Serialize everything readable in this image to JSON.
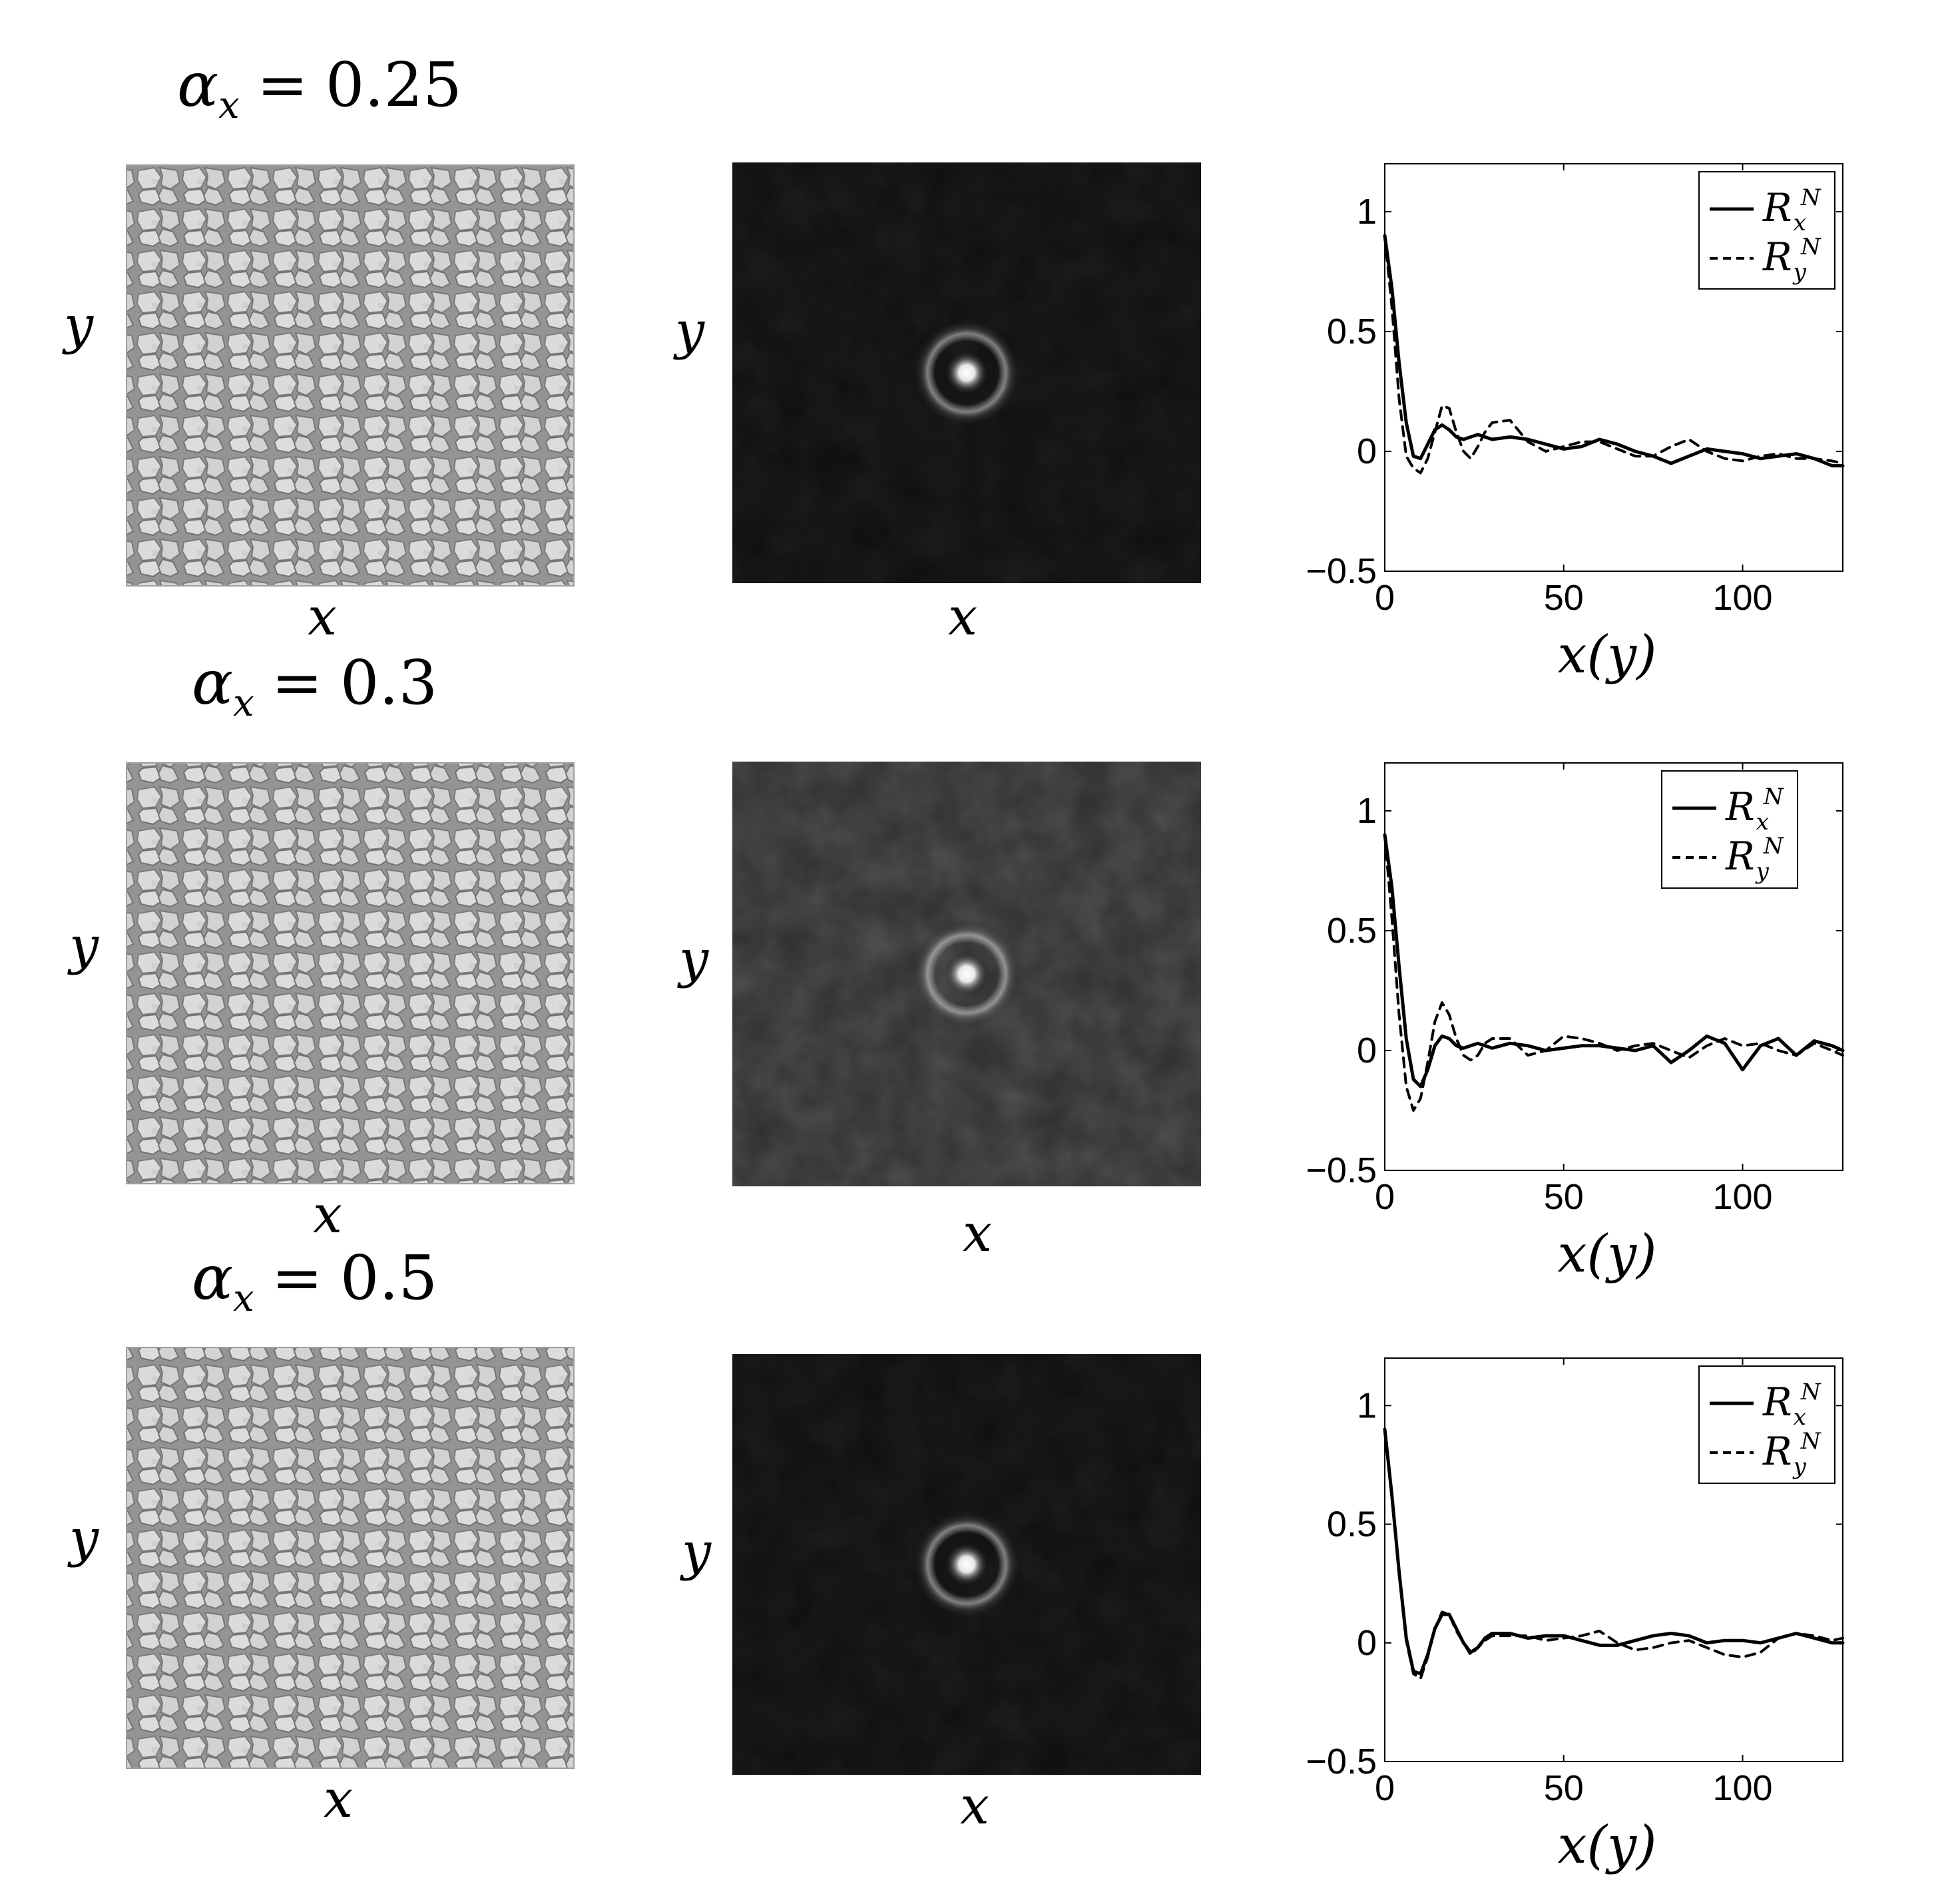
{
  "figure": {
    "rows": [
      {
        "alpha_label": "αx = 0.25",
        "alpha_symbol": "α",
        "alpha_subscript": "x",
        "alpha_value": "0.25",
        "left_panel": {
          "xlabel": "x",
          "ylabel": "y"
        },
        "middle_panel": {
          "xlabel": "x",
          "ylabel": "y"
        }
      },
      {
        "alpha_label": "αx = 0.3",
        "alpha_symbol": "α",
        "alpha_subscript": "x",
        "alpha_value": "0.3",
        "left_panel": {
          "xlabel": "x",
          "ylabel": "y"
        },
        "middle_panel": {
          "xlabel": "x",
          "ylabel": "y"
        }
      },
      {
        "alpha_label": "αx = 0.5",
        "alpha_symbol": "α",
        "alpha_subscript": "x",
        "alpha_value": "0.5",
        "left_panel": {
          "xlabel": "x",
          "ylabel": "y"
        },
        "middle_panel": {
          "xlabel": "x",
          "ylabel": "y"
        }
      }
    ]
  },
  "chart_data": [
    {
      "type": "line",
      "xlabel": "x(y)",
      "ylabel": "",
      "xlim": [
        0,
        128
      ],
      "ylim": [
        -0.5,
        1.2
      ],
      "xticks": [
        0,
        50,
        100
      ],
      "yticks": [
        -0.5,
        0,
        0.5,
        1
      ],
      "ytick_labels": [
        "−0.5",
        "0",
        "0.5",
        "1"
      ],
      "xtick_labels": [
        "0",
        "50",
        "100"
      ],
      "legend_position": "top-right",
      "series": [
        {
          "name": "R_x^N",
          "style": "solid",
          "x": [
            0,
            2,
            4,
            6,
            8,
            10,
            12,
            14,
            16,
            18,
            20,
            22,
            24,
            26,
            28,
            30,
            35,
            40,
            45,
            50,
            55,
            60,
            65,
            70,
            75,
            80,
            85,
            90,
            95,
            100,
            105,
            110,
            115,
            120,
            125,
            128
          ],
          "values": [
            0.9,
            0.68,
            0.37,
            0.12,
            -0.02,
            -0.03,
            0.03,
            0.09,
            0.11,
            0.09,
            0.06,
            0.05,
            0.06,
            0.07,
            0.06,
            0.05,
            0.06,
            0.05,
            0.03,
            0.01,
            0.02,
            0.05,
            0.03,
            0.0,
            -0.02,
            -0.05,
            -0.02,
            0.01,
            0.0,
            -0.01,
            -0.03,
            -0.02,
            -0.01,
            -0.03,
            -0.06,
            -0.06
          ]
        },
        {
          "name": "R_y^N",
          "style": "dashed",
          "x": [
            0,
            2,
            4,
            6,
            8,
            10,
            12,
            14,
            16,
            18,
            20,
            22,
            24,
            26,
            28,
            30,
            35,
            40,
            45,
            50,
            55,
            60,
            65,
            70,
            75,
            80,
            85,
            90,
            95,
            100,
            105,
            110,
            115,
            120,
            125,
            128
          ],
          "values": [
            0.9,
            0.6,
            0.22,
            -0.02,
            -0.07,
            -0.09,
            -0.03,
            0.08,
            0.19,
            0.18,
            0.08,
            0.0,
            -0.03,
            0.02,
            0.08,
            0.12,
            0.13,
            0.04,
            0.0,
            0.02,
            0.04,
            0.04,
            0.01,
            -0.02,
            -0.02,
            0.02,
            0.05,
            0.0,
            -0.03,
            -0.04,
            -0.02,
            -0.01,
            -0.03,
            -0.03,
            -0.04,
            -0.05
          ]
        }
      ]
    },
    {
      "type": "line",
      "xlabel": "x(y)",
      "ylabel": "",
      "xlim": [
        0,
        128
      ],
      "ylim": [
        -0.5,
        1.2
      ],
      "xticks": [
        0,
        50,
        100
      ],
      "yticks": [
        -0.5,
        0,
        0.5,
        1
      ],
      "ytick_labels": [
        "−0.5",
        "0",
        "0.5",
        "1"
      ],
      "xtick_labels": [
        "0",
        "50",
        "100"
      ],
      "legend_position": "top-right",
      "series": [
        {
          "name": "R_x^N",
          "style": "solid",
          "x": [
            0,
            2,
            4,
            6,
            8,
            10,
            12,
            14,
            16,
            18,
            20,
            22,
            24,
            26,
            28,
            30,
            35,
            40,
            45,
            50,
            55,
            60,
            65,
            70,
            75,
            80,
            85,
            90,
            95,
            100,
            105,
            110,
            115,
            120,
            125,
            128
          ],
          "values": [
            0.9,
            0.68,
            0.35,
            0.05,
            -0.12,
            -0.15,
            -0.08,
            0.02,
            0.06,
            0.05,
            0.02,
            0.01,
            0.02,
            0.03,
            0.02,
            0.01,
            0.03,
            0.02,
            0.0,
            0.01,
            0.02,
            0.02,
            0.01,
            0.0,
            0.02,
            -0.05,
            0.0,
            0.06,
            0.03,
            -0.08,
            0.02,
            0.05,
            -0.02,
            0.04,
            0.02,
            0.0
          ]
        },
        {
          "name": "R_y^N",
          "style": "dashed",
          "x": [
            0,
            2,
            4,
            6,
            8,
            10,
            12,
            14,
            16,
            18,
            20,
            22,
            24,
            26,
            28,
            30,
            35,
            40,
            45,
            50,
            55,
            60,
            65,
            70,
            75,
            80,
            85,
            90,
            95,
            100,
            105,
            110,
            115,
            120,
            125,
            128
          ],
          "values": [
            0.9,
            0.55,
            0.15,
            -0.15,
            -0.25,
            -0.2,
            -0.05,
            0.12,
            0.2,
            0.15,
            0.05,
            -0.02,
            -0.04,
            -0.02,
            0.03,
            0.05,
            0.05,
            -0.02,
            0.0,
            0.06,
            0.05,
            0.03,
            0.0,
            0.02,
            0.03,
            0.0,
            -0.03,
            0.02,
            0.05,
            0.02,
            0.03,
            0.0,
            -0.02,
            0.03,
            0.0,
            -0.02
          ]
        }
      ]
    },
    {
      "type": "line",
      "xlabel": "x(y)",
      "ylabel": "",
      "xlim": [
        0,
        128
      ],
      "ylim": [
        -0.5,
        1.2
      ],
      "xticks": [
        0,
        50,
        100
      ],
      "yticks": [
        -0.5,
        0,
        0.5,
        1
      ],
      "ytick_labels": [
        "−0.5",
        "0",
        "0.5",
        "1"
      ],
      "xtick_labels": [
        "0",
        "50",
        "100"
      ],
      "legend_position": "top-right",
      "series": [
        {
          "name": "R_x^N",
          "style": "solid",
          "x": [
            0,
            2,
            4,
            6,
            8,
            10,
            12,
            14,
            16,
            18,
            20,
            22,
            24,
            26,
            28,
            30,
            35,
            40,
            45,
            50,
            55,
            60,
            65,
            70,
            75,
            80,
            85,
            90,
            95,
            100,
            105,
            110,
            115,
            120,
            125,
            128
          ],
          "values": [
            0.9,
            0.62,
            0.3,
            0.02,
            -0.12,
            -0.13,
            -0.05,
            0.06,
            0.12,
            0.12,
            0.06,
            0.0,
            -0.04,
            -0.02,
            0.02,
            0.04,
            0.04,
            0.02,
            0.03,
            0.03,
            0.01,
            -0.01,
            -0.01,
            0.01,
            0.03,
            0.04,
            0.03,
            0.0,
            0.01,
            0.01,
            0.0,
            0.02,
            0.04,
            0.02,
            0.0,
            0.0
          ]
        },
        {
          "name": "R_y^N",
          "style": "dashed",
          "x": [
            0,
            2,
            4,
            6,
            8,
            10,
            12,
            14,
            16,
            18,
            20,
            22,
            24,
            26,
            28,
            30,
            35,
            40,
            45,
            50,
            55,
            60,
            65,
            70,
            75,
            80,
            85,
            90,
            95,
            100,
            105,
            110,
            115,
            120,
            125,
            128
          ],
          "values": [
            0.9,
            0.62,
            0.29,
            0.01,
            -0.13,
            -0.15,
            -0.06,
            0.06,
            0.13,
            0.12,
            0.05,
            0.0,
            -0.05,
            -0.02,
            0.01,
            0.03,
            0.03,
            0.03,
            0.01,
            0.02,
            0.03,
            0.05,
            0.0,
            -0.03,
            -0.02,
            0.0,
            0.01,
            -0.02,
            -0.05,
            -0.06,
            -0.04,
            0.02,
            0.04,
            0.03,
            0.01,
            0.02
          ]
        }
      ]
    }
  ]
}
